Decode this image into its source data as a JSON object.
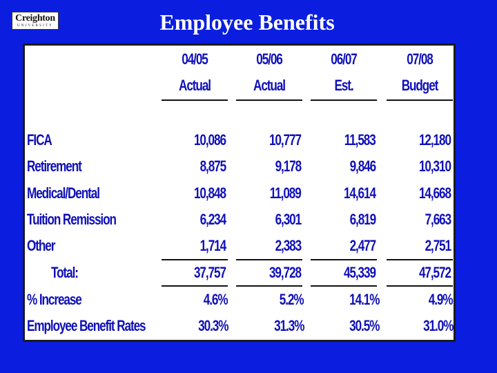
{
  "slide": {
    "title": "Employee Benefits",
    "logo": {
      "word": "Creighton",
      "sub": "UNIVERSITY"
    }
  },
  "table": {
    "columns": [
      {
        "year": "04/05",
        "type": "Actual"
      },
      {
        "year": "05/06",
        "type": "Actual"
      },
      {
        "year": "06/07",
        "type": "Est."
      },
      {
        "year": "07/08",
        "type": "Budget"
      }
    ],
    "rows": [
      {
        "label": "FICA",
        "values": [
          "10,086",
          "10,777",
          "11,583",
          "12,180"
        ]
      },
      {
        "label": "Retirement",
        "values": [
          "8,875",
          "9,178",
          "9,846",
          "10,310"
        ]
      },
      {
        "label": "Medical/Dental",
        "values": [
          "10,848",
          "11,089",
          "14,614",
          "14,668"
        ]
      },
      {
        "label": "Tuition Remission",
        "values": [
          "6,234",
          "6,301",
          "6,819",
          "7,663"
        ]
      },
      {
        "label": "Other",
        "values": [
          "1,714",
          "2,383",
          "2,477",
          "2,751"
        ]
      }
    ],
    "total": {
      "label": "Total:",
      "values": [
        "37,757",
        "39,728",
        "45,339",
        "47,572"
      ]
    },
    "increase": {
      "label": "% Increase",
      "values": [
        "4.6%",
        "5.2%",
        "14.1%",
        "4.9%"
      ]
    },
    "benefit_rates": {
      "label": "Employee Benefit Rates",
      "values": [
        "30.3%",
        "31.3%",
        "30.5%",
        "31.0%"
      ]
    }
  }
}
